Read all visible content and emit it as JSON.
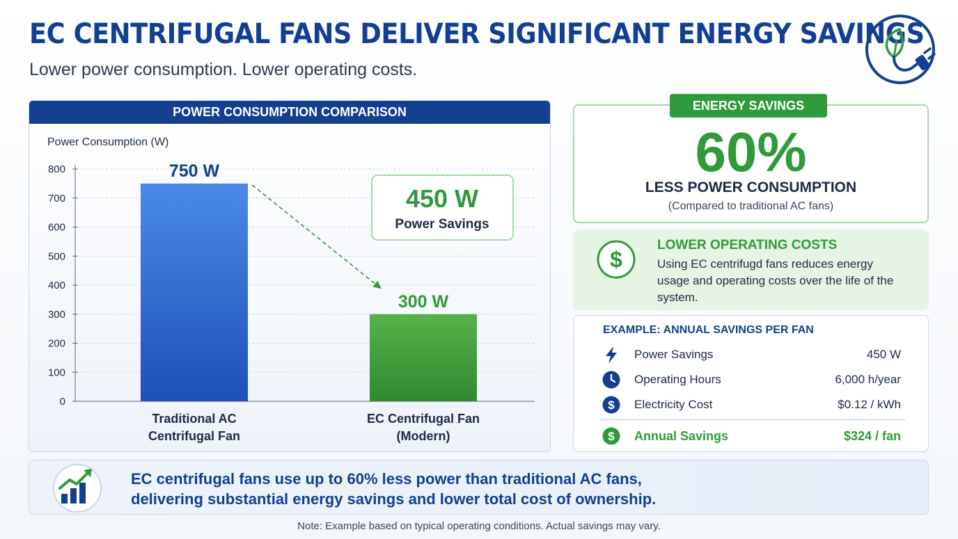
{
  "header": {
    "title": "EC CENTRIFUGAL FANS DELIVER SIGNIFICANT ENERGY SAVINGS",
    "subtitle": "Lower power consumption. Lower operating costs.",
    "logo_icon": "leaf-plug-icon"
  },
  "chart_panel": {
    "header": "POWER CONSUMPTION COMPARISON"
  },
  "chart_data": {
    "type": "bar",
    "title": "POWER CONSUMPTION COMPARISON",
    "ylabel": "Power Consumption (W)",
    "xlabel": "",
    "ylim": [
      0,
      800
    ],
    "yticks": [
      0,
      100,
      200,
      300,
      400,
      500,
      600,
      700,
      800
    ],
    "grid": true,
    "categories": [
      [
        "Traditional AC",
        "Centrifugal Fan"
      ],
      [
        "EC Centrifugal Fan",
        "(Modern)"
      ]
    ],
    "values": [
      750,
      300
    ],
    "data_labels": [
      "750 W",
      "300 W"
    ],
    "colors": [
      "#2f6fd6",
      "#3f9d3a"
    ],
    "annotation": {
      "value": "450 W",
      "label": "Power Savings"
    }
  },
  "savings_card": {
    "tag": "ENERGY SAVINGS",
    "percent": "60%",
    "label": "LESS POWER CONSUMPTION",
    "note": "(Compared to traditional AC fans)"
  },
  "costs_card": {
    "icon": "dollar-circle-icon",
    "title": "LOWER OPERATING COSTS",
    "text": "Using EC centrifugd fans reduces energy usage and operating costs over the life of the system."
  },
  "example_card": {
    "title": "EXAMPLE: ANNUAL SAVINGS PER FAN",
    "rows": [
      {
        "icon": "lightning-icon",
        "label": "Power Savings",
        "value": "450 W"
      },
      {
        "icon": "clock-icon",
        "label": "Operating Hours",
        "value": "6,000 h/year"
      },
      {
        "icon": "dollar-icon",
        "label": "Electricity Cost",
        "value": "$0.12 / kWh"
      }
    ],
    "total": {
      "icon": "dollar-green-icon",
      "label": "Annual Savings",
      "value": "$324 / fan"
    }
  },
  "summary": {
    "icon": "growth-chart-icon",
    "line1": "EC centrifugal fans use up to 60% less power than traditional AC fans,",
    "line2": "delivering substantial energy savings and lower total cost of ownership."
  },
  "footnote": "Note: Example based on typical operating conditions. Actual savings may vary.",
  "colors": {
    "brand_blue": "#12408f",
    "accent_green": "#2f9a3a",
    "bar_blue": "#2f6fd6",
    "bar_green": "#3f9d3a"
  }
}
